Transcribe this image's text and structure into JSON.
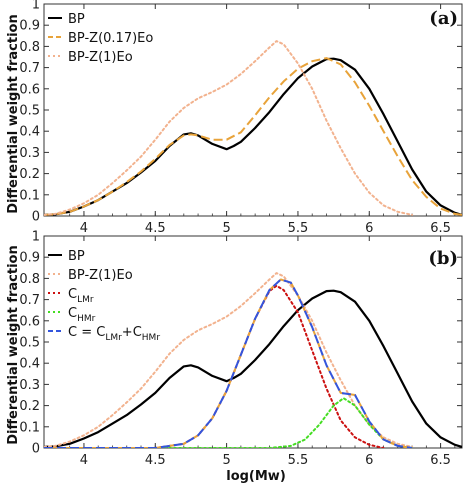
{
  "ylabel": "Differential weight fraction",
  "xlabel": "log(Mw)",
  "chart_data": [
    {
      "type": "line",
      "panel": "(a)",
      "xlim": [
        3.72,
        6.65
      ],
      "ylim": [
        0,
        1
      ],
      "x_ticks": [
        "4",
        "4.5",
        "5",
        "5.5",
        "6",
        "6.5"
      ],
      "y_ticks": [
        "0",
        "0.1",
        "0.2",
        "0.3",
        "0.4",
        "0.5",
        "0.6",
        "0.7",
        "0.8",
        "0.9",
        "1"
      ],
      "grid": false,
      "legend_position": "top-left",
      "series": [
        {
          "name": "BP",
          "color": "#000000",
          "style": "solid",
          "points": [
            [
              3.72,
              0.005
            ],
            [
              3.8,
              0.008
            ],
            [
              3.9,
              0.02
            ],
            [
              4.0,
              0.045
            ],
            [
              4.1,
              0.075
            ],
            [
              4.2,
              0.115
            ],
            [
              4.3,
              0.155
            ],
            [
              4.4,
              0.205
            ],
            [
              4.5,
              0.26
            ],
            [
              4.6,
              0.33
            ],
            [
              4.7,
              0.385
            ],
            [
              4.75,
              0.39
            ],
            [
              4.8,
              0.38
            ],
            [
              4.9,
              0.34
            ],
            [
              5.0,
              0.315
            ],
            [
              5.05,
              0.33
            ],
            [
              5.1,
              0.35
            ],
            [
              5.2,
              0.415
            ],
            [
              5.3,
              0.49
            ],
            [
              5.4,
              0.575
            ],
            [
              5.5,
              0.65
            ],
            [
              5.6,
              0.705
            ],
            [
              5.7,
              0.74
            ],
            [
              5.75,
              0.742
            ],
            [
              5.8,
              0.735
            ],
            [
              5.9,
              0.69
            ],
            [
              6.0,
              0.6
            ],
            [
              6.1,
              0.48
            ],
            [
              6.2,
              0.35
            ],
            [
              6.3,
              0.22
            ],
            [
              6.4,
              0.115
            ],
            [
              6.5,
              0.05
            ],
            [
              6.6,
              0.015
            ],
            [
              6.65,
              0.005
            ]
          ]
        },
        {
          "name": "BP-Z(0.17)Eo",
          "color": "#e8a33a",
          "style": "dashed",
          "points": [
            [
              3.72,
              0.005
            ],
            [
              3.8,
              0.008
            ],
            [
              3.9,
              0.02
            ],
            [
              4.0,
              0.045
            ],
            [
              4.1,
              0.075
            ],
            [
              4.2,
              0.115
            ],
            [
              4.3,
              0.16
            ],
            [
              4.4,
              0.21
            ],
            [
              4.5,
              0.27
            ],
            [
              4.6,
              0.335
            ],
            [
              4.7,
              0.38
            ],
            [
              4.75,
              0.385
            ],
            [
              4.8,
              0.38
            ],
            [
              4.9,
              0.36
            ],
            [
              5.0,
              0.36
            ],
            [
              5.1,
              0.395
            ],
            [
              5.2,
              0.475
            ],
            [
              5.3,
              0.56
            ],
            [
              5.4,
              0.635
            ],
            [
              5.5,
              0.695
            ],
            [
              5.6,
              0.73
            ],
            [
              5.7,
              0.745
            ],
            [
              5.8,
              0.715
            ],
            [
              5.9,
              0.63
            ],
            [
              6.0,
              0.52
            ],
            [
              6.1,
              0.4
            ],
            [
              6.2,
              0.28
            ],
            [
              6.3,
              0.17
            ],
            [
              6.4,
              0.09
            ],
            [
              6.5,
              0.035
            ],
            [
              6.6,
              0.01
            ],
            [
              6.65,
              0.005
            ]
          ]
        },
        {
          "name": "BP-Z(1)Eo",
          "color": "#f2b28e",
          "style": "dotted",
          "points": [
            [
              3.72,
              0.005
            ],
            [
              3.8,
              0.01
            ],
            [
              3.9,
              0.03
            ],
            [
              4.0,
              0.06
            ],
            [
              4.1,
              0.1
            ],
            [
              4.2,
              0.155
            ],
            [
              4.3,
              0.215
            ],
            [
              4.4,
              0.28
            ],
            [
              4.5,
              0.36
            ],
            [
              4.6,
              0.445
            ],
            [
              4.7,
              0.51
            ],
            [
              4.8,
              0.555
            ],
            [
              4.9,
              0.585
            ],
            [
              5.0,
              0.62
            ],
            [
              5.1,
              0.67
            ],
            [
              5.2,
              0.73
            ],
            [
              5.3,
              0.795
            ],
            [
              5.35,
              0.825
            ],
            [
              5.4,
              0.81
            ],
            [
              5.5,
              0.72
            ],
            [
              5.6,
              0.6
            ],
            [
              5.7,
              0.45
            ],
            [
              5.8,
              0.32
            ],
            [
              5.9,
              0.2
            ],
            [
              6.0,
              0.11
            ],
            [
              6.1,
              0.05
            ],
            [
              6.2,
              0.02
            ],
            [
              6.3,
              0.005
            ]
          ]
        }
      ]
    },
    {
      "type": "line",
      "panel": "(b)",
      "xlim": [
        3.72,
        6.65
      ],
      "ylim": [
        0,
        1
      ],
      "x_ticks": [
        "4",
        "4.5",
        "5",
        "5.5",
        "6",
        "6.5"
      ],
      "y_ticks": [
        "0",
        "0.1",
        "0.2",
        "0.3",
        "0.4",
        "0.5",
        "0.6",
        "0.7",
        "0.8",
        "0.9",
        "1"
      ],
      "grid": false,
      "legend_position": "top-left",
      "series": [
        {
          "name": "BP",
          "color": "#000000",
          "style": "solid",
          "points": [
            [
              3.72,
              0.005
            ],
            [
              3.8,
              0.008
            ],
            [
              3.9,
              0.02
            ],
            [
              4.0,
              0.045
            ],
            [
              4.1,
              0.075
            ],
            [
              4.2,
              0.115
            ],
            [
              4.3,
              0.155
            ],
            [
              4.4,
              0.205
            ],
            [
              4.5,
              0.26
            ],
            [
              4.6,
              0.33
            ],
            [
              4.7,
              0.385
            ],
            [
              4.75,
              0.39
            ],
            [
              4.8,
              0.38
            ],
            [
              4.9,
              0.34
            ],
            [
              5.0,
              0.315
            ],
            [
              5.05,
              0.33
            ],
            [
              5.1,
              0.35
            ],
            [
              5.2,
              0.415
            ],
            [
              5.3,
              0.49
            ],
            [
              5.4,
              0.575
            ],
            [
              5.5,
              0.65
            ],
            [
              5.6,
              0.705
            ],
            [
              5.7,
              0.74
            ],
            [
              5.75,
              0.742
            ],
            [
              5.8,
              0.735
            ],
            [
              5.9,
              0.69
            ],
            [
              6.0,
              0.6
            ],
            [
              6.1,
              0.48
            ],
            [
              6.2,
              0.35
            ],
            [
              6.3,
              0.22
            ],
            [
              6.4,
              0.115
            ],
            [
              6.5,
              0.05
            ],
            [
              6.6,
              0.015
            ],
            [
              6.65,
              0.005
            ]
          ]
        },
        {
          "name": "BP-Z(1)Eo",
          "color": "#f2b28e",
          "style": "dotted",
          "points": [
            [
              3.72,
              0.005
            ],
            [
              3.8,
              0.01
            ],
            [
              3.9,
              0.03
            ],
            [
              4.0,
              0.06
            ],
            [
              4.1,
              0.1
            ],
            [
              4.2,
              0.155
            ],
            [
              4.3,
              0.215
            ],
            [
              4.4,
              0.28
            ],
            [
              4.5,
              0.36
            ],
            [
              4.6,
              0.445
            ],
            [
              4.7,
              0.51
            ],
            [
              4.8,
              0.555
            ],
            [
              4.9,
              0.585
            ],
            [
              5.0,
              0.62
            ],
            [
              5.1,
              0.67
            ],
            [
              5.2,
              0.73
            ],
            [
              5.3,
              0.795
            ],
            [
              5.35,
              0.825
            ],
            [
              5.4,
              0.81
            ],
            [
              5.5,
              0.72
            ],
            [
              5.6,
              0.6
            ],
            [
              5.7,
              0.45
            ],
            [
              5.8,
              0.32
            ],
            [
              5.9,
              0.2
            ],
            [
              6.0,
              0.11
            ],
            [
              6.1,
              0.05
            ],
            [
              6.2,
              0.02
            ],
            [
              6.3,
              0.005
            ]
          ]
        },
        {
          "name": "C_LMr",
          "label_main": "C",
          "label_sub": "LMr",
          "color": "#cc1111",
          "style": "dotted",
          "points": [
            [
              3.72,
              0.0
            ],
            [
              4.5,
              0.0
            ],
            [
              4.7,
              0.02
            ],
            [
              4.8,
              0.06
            ],
            [
              4.9,
              0.14
            ],
            [
              5.0,
              0.27
            ],
            [
              5.1,
              0.44
            ],
            [
              5.2,
              0.61
            ],
            [
              5.3,
              0.74
            ],
            [
              5.35,
              0.765
            ],
            [
              5.4,
              0.745
            ],
            [
              5.5,
              0.64
            ],
            [
              5.6,
              0.46
            ],
            [
              5.7,
              0.28
            ],
            [
              5.8,
              0.13
            ],
            [
              5.9,
              0.05
            ],
            [
              6.0,
              0.015
            ],
            [
              6.1,
              0.0
            ]
          ]
        },
        {
          "name": "C_HMr",
          "label_main": "C",
          "label_sub": "HMr",
          "color": "#44dd22",
          "style": "dotted",
          "points": [
            [
              3.72,
              0.0
            ],
            [
              5.3,
              0.0
            ],
            [
              5.45,
              0.01
            ],
            [
              5.55,
              0.04
            ],
            [
              5.65,
              0.11
            ],
            [
              5.75,
              0.2
            ],
            [
              5.82,
              0.235
            ],
            [
              5.9,
              0.2
            ],
            [
              6.0,
              0.11
            ],
            [
              6.1,
              0.04
            ],
            [
              6.2,
              0.01
            ],
            [
              6.3,
              0.0
            ]
          ]
        },
        {
          "name": "C = C_LMr+C_HMr",
          "label_main": "C = C",
          "label_sub": "LMr",
          "label_mid": "+C",
          "label_sub2": "HMr",
          "color": "#3355dd",
          "color2": "#e8a33a",
          "style": "dashed",
          "points": [
            [
              3.72,
              0.0
            ],
            [
              4.5,
              0.0
            ],
            [
              4.7,
              0.02
            ],
            [
              4.8,
              0.06
            ],
            [
              4.9,
              0.14
            ],
            [
              5.0,
              0.27
            ],
            [
              5.1,
              0.44
            ],
            [
              5.2,
              0.61
            ],
            [
              5.3,
              0.745
            ],
            [
              5.38,
              0.795
            ],
            [
              5.45,
              0.78
            ],
            [
              5.5,
              0.72
            ],
            [
              5.6,
              0.57
            ],
            [
              5.7,
              0.39
            ],
            [
              5.8,
              0.26
            ],
            [
              5.9,
              0.25
            ],
            [
              6.0,
              0.125
            ],
            [
              6.1,
              0.04
            ],
            [
              6.2,
              0.01
            ],
            [
              6.3,
              0.0
            ]
          ]
        }
      ]
    }
  ]
}
